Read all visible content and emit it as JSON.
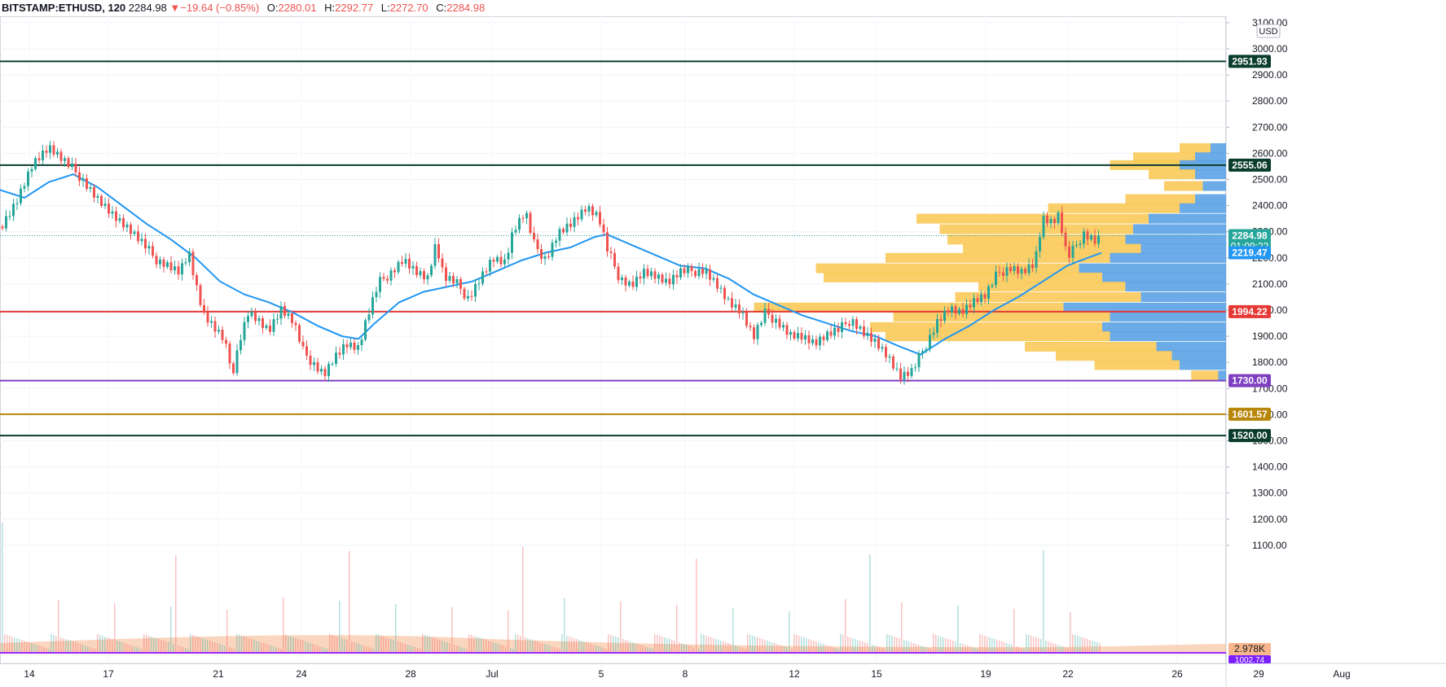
{
  "header": {
    "symbol": "BITSTAMP:ETHUSD, 120",
    "last": "2284.98",
    "change": "−19.64 (−0.85%)",
    "o_label": "O:",
    "o_value": "2280.01",
    "h_label": "H:",
    "h_value": "2292.77",
    "l_label": "L:",
    "l_value": "2272.70",
    "c_label": "C:",
    "c_value": "2284.98"
  },
  "currency": "USD",
  "chart_data": {
    "type": "candlestick",
    "x_ticks": [
      "14",
      "17",
      "21",
      "24",
      "28",
      "Jul",
      "5",
      "8",
      "12",
      "15",
      "19",
      "22",
      "26",
      "29",
      "Aug"
    ],
    "y_ticks": [
      3100,
      3000,
      2900,
      2800,
      2700,
      2600,
      2500,
      2400,
      2300,
      2200,
      2100,
      2000,
      1900,
      1800,
      1700,
      1600,
      1500,
      1400,
      1300,
      1200,
      1100
    ],
    "y_tick_labels": [
      "3100.00",
      "3000.00",
      "2900.00",
      "2800.00",
      "2700.00",
      "2600.00",
      "2500.00",
      "2400.00",
      "2300.00",
      "2200.00",
      "2100.00",
      "2000.00",
      "1900.00",
      "1800.00",
      "1700.00",
      "1600.00",
      "1500.00",
      "1400.00",
      "1300.00",
      "1200.00",
      "1100.00"
    ],
    "ylim": [
      1000,
      3100
    ],
    "grid": true,
    "horizontal_levels": [
      {
        "value": 2951.93,
        "label": "2951.93",
        "color": "#0b3d2e"
      },
      {
        "value": 2555.06,
        "label": "2555.06",
        "color": "#0b3d2e"
      },
      {
        "value": 1994.22,
        "label": "1994.22",
        "color": "#e53935"
      },
      {
        "value": 1730.0,
        "label": "1730.00",
        "color": "#7e3fc0"
      },
      {
        "value": 1601.57,
        "label": "1601.57",
        "color": "#b8860b"
      },
      {
        "value": 1520.0,
        "label": "1520.00",
        "color": "#0b3d2e"
      }
    ],
    "price_badges": [
      {
        "value": 2284.98,
        "label": "2284.98",
        "sublabel": "01:09:22",
        "color": "#26a69a"
      },
      {
        "value": 2219.47,
        "label": "2219.47",
        "color": "#2196f3"
      }
    ],
    "volume_badges": [
      {
        "label": "2.978K",
        "color": "#f7b58b"
      },
      {
        "label": "1002.74",
        "color": "#7b1fff"
      }
    ],
    "price_path": [
      [
        0,
        2320
      ],
      [
        20,
        2420
      ],
      [
        40,
        2560
      ],
      [
        60,
        2620
      ],
      [
        80,
        2560
      ],
      [
        100,
        2510
      ],
      [
        120,
        2430
      ],
      [
        140,
        2360
      ],
      [
        160,
        2300
      ],
      [
        175,
        2250
      ],
      [
        190,
        2200
      ],
      [
        205,
        2180
      ],
      [
        220,
        2150
      ],
      [
        232,
        2220
      ],
      [
        240,
        2100
      ],
      [
        250,
        1980
      ],
      [
        262,
        1930
      ],
      [
        275,
        1880
      ],
      [
        285,
        1760
      ],
      [
        295,
        1900
      ],
      [
        305,
        2000
      ],
      [
        318,
        1960
      ],
      [
        330,
        1920
      ],
      [
        345,
        2000
      ],
      [
        360,
        1950
      ],
      [
        372,
        1840
      ],
      [
        385,
        1800
      ],
      [
        398,
        1760
      ],
      [
        410,
        1820
      ],
      [
        425,
        1870
      ],
      [
        440,
        1850
      ],
      [
        450,
        1960
      ],
      [
        465,
        2100
      ],
      [
        480,
        2150
      ],
      [
        495,
        2200
      ],
      [
        510,
        2150
      ],
      [
        525,
        2120
      ],
      [
        535,
        2250
      ],
      [
        545,
        2120
      ],
      [
        560,
        2100
      ],
      [
        575,
        2050
      ],
      [
        590,
        2130
      ],
      [
        605,
        2200
      ],
      [
        620,
        2180
      ],
      [
        630,
        2300
      ],
      [
        645,
        2370
      ],
      [
        655,
        2250
      ],
      [
        670,
        2200
      ],
      [
        685,
        2300
      ],
      [
        700,
        2330
      ],
      [
        720,
        2390
      ],
      [
        735,
        2350
      ],
      [
        745,
        2230
      ],
      [
        760,
        2130
      ],
      [
        775,
        2100
      ],
      [
        790,
        2150
      ],
      [
        805,
        2130
      ],
      [
        820,
        2100
      ],
      [
        835,
        2140
      ],
      [
        850,
        2150
      ],
      [
        865,
        2160
      ],
      [
        880,
        2100
      ],
      [
        895,
        2030
      ],
      [
        910,
        1990
      ],
      [
        925,
        1890
      ],
      [
        940,
        1990
      ],
      [
        955,
        1960
      ],
      [
        970,
        1910
      ],
      [
        985,
        1900
      ],
      [
        1000,
        1870
      ],
      [
        1015,
        1900
      ],
      [
        1030,
        1920
      ],
      [
        1045,
        1970
      ],
      [
        1060,
        1920
      ],
      [
        1075,
        1880
      ],
      [
        1090,
        1820
      ],
      [
        1105,
        1740
      ],
      [
        1120,
        1760
      ],
      [
        1135,
        1860
      ],
      [
        1150,
        1960
      ],
      [
        1165,
        2010
      ],
      [
        1180,
        1990
      ],
      [
        1195,
        2030
      ],
      [
        1210,
        2050
      ],
      [
        1225,
        2140
      ],
      [
        1240,
        2170
      ],
      [
        1255,
        2150
      ],
      [
        1270,
        2180
      ],
      [
        1280,
        2350
      ],
      [
        1292,
        2330
      ],
      [
        1300,
        2360
      ],
      [
        1310,
        2190
      ],
      [
        1320,
        2240
      ],
      [
        1330,
        2300
      ],
      [
        1345,
        2270
      ],
      [
        1352,
        2285
      ]
    ],
    "moving_average": [
      [
        0,
        2460
      ],
      [
        30,
        2430
      ],
      [
        60,
        2490
      ],
      [
        90,
        2520
      ],
      [
        120,
        2470
      ],
      [
        150,
        2400
      ],
      [
        180,
        2330
      ],
      [
        210,
        2270
      ],
      [
        240,
        2200
      ],
      [
        270,
        2110
      ],
      [
        300,
        2060
      ],
      [
        330,
        2030
      ],
      [
        360,
        1990
      ],
      [
        390,
        1940
      ],
      [
        420,
        1900
      ],
      [
        440,
        1890
      ],
      [
        460,
        1950
      ],
      [
        490,
        2030
      ],
      [
        520,
        2070
      ],
      [
        550,
        2090
      ],
      [
        580,
        2110
      ],
      [
        610,
        2150
      ],
      [
        640,
        2190
      ],
      [
        670,
        2220
      ],
      [
        700,
        2240
      ],
      [
        730,
        2280
      ],
      [
        745,
        2290
      ],
      [
        775,
        2250
      ],
      [
        805,
        2210
      ],
      [
        835,
        2170
      ],
      [
        865,
        2160
      ],
      [
        895,
        2120
      ],
      [
        925,
        2060
      ],
      [
        955,
        2020
      ],
      [
        985,
        1980
      ],
      [
        1015,
        1950
      ],
      [
        1045,
        1920
      ],
      [
        1075,
        1900
      ],
      [
        1105,
        1860
      ],
      [
        1130,
        1830
      ],
      [
        1160,
        1890
      ],
      [
        1190,
        1940
      ],
      [
        1220,
        2000
      ],
      [
        1250,
        2050
      ],
      [
        1280,
        2110
      ],
      [
        1310,
        2170
      ],
      [
        1335,
        2200
      ],
      [
        1352,
        2219
      ]
    ],
    "volume_profile": [
      {
        "price": 2620,
        "up": 40,
        "down": 20
      },
      {
        "price": 2585,
        "up": 80,
        "down": 40
      },
      {
        "price": 2555,
        "up": 90,
        "down": 60
      },
      {
        "price": 2520,
        "up": 60,
        "down": 40
      },
      {
        "price": 2475,
        "up": 50,
        "down": 30
      },
      {
        "price": 2425,
        "up": 90,
        "down": 40
      },
      {
        "price": 2390,
        "up": 170,
        "down": 60
      },
      {
        "price": 2350,
        "up": 300,
        "down": 100
      },
      {
        "price": 2310,
        "up": 250,
        "down": 120
      },
      {
        "price": 2270,
        "up": 230,
        "down": 130
      },
      {
        "price": 2235,
        "up": 230,
        "down": 110
      },
      {
        "price": 2200,
        "up": 290,
        "down": 150
      },
      {
        "price": 2160,
        "up": 340,
        "down": 190
      },
      {
        "price": 2125,
        "up": 360,
        "down": 160
      },
      {
        "price": 2090,
        "up": 190,
        "down": 130
      },
      {
        "price": 2050,
        "up": 240,
        "down": 110
      },
      {
        "price": 2010,
        "up": 400,
        "down": 210
      },
      {
        "price": 1975,
        "up": 280,
        "down": 150
      },
      {
        "price": 1935,
        "up": 300,
        "down": 160
      },
      {
        "price": 1900,
        "up": 290,
        "down": 150
      },
      {
        "price": 1860,
        "up": 170,
        "down": 90
      },
      {
        "price": 1825,
        "up": 150,
        "down": 70
      },
      {
        "price": 1790,
        "up": 110,
        "down": 60
      },
      {
        "price": 1750,
        "up": 35,
        "down": 10
      }
    ]
  }
}
